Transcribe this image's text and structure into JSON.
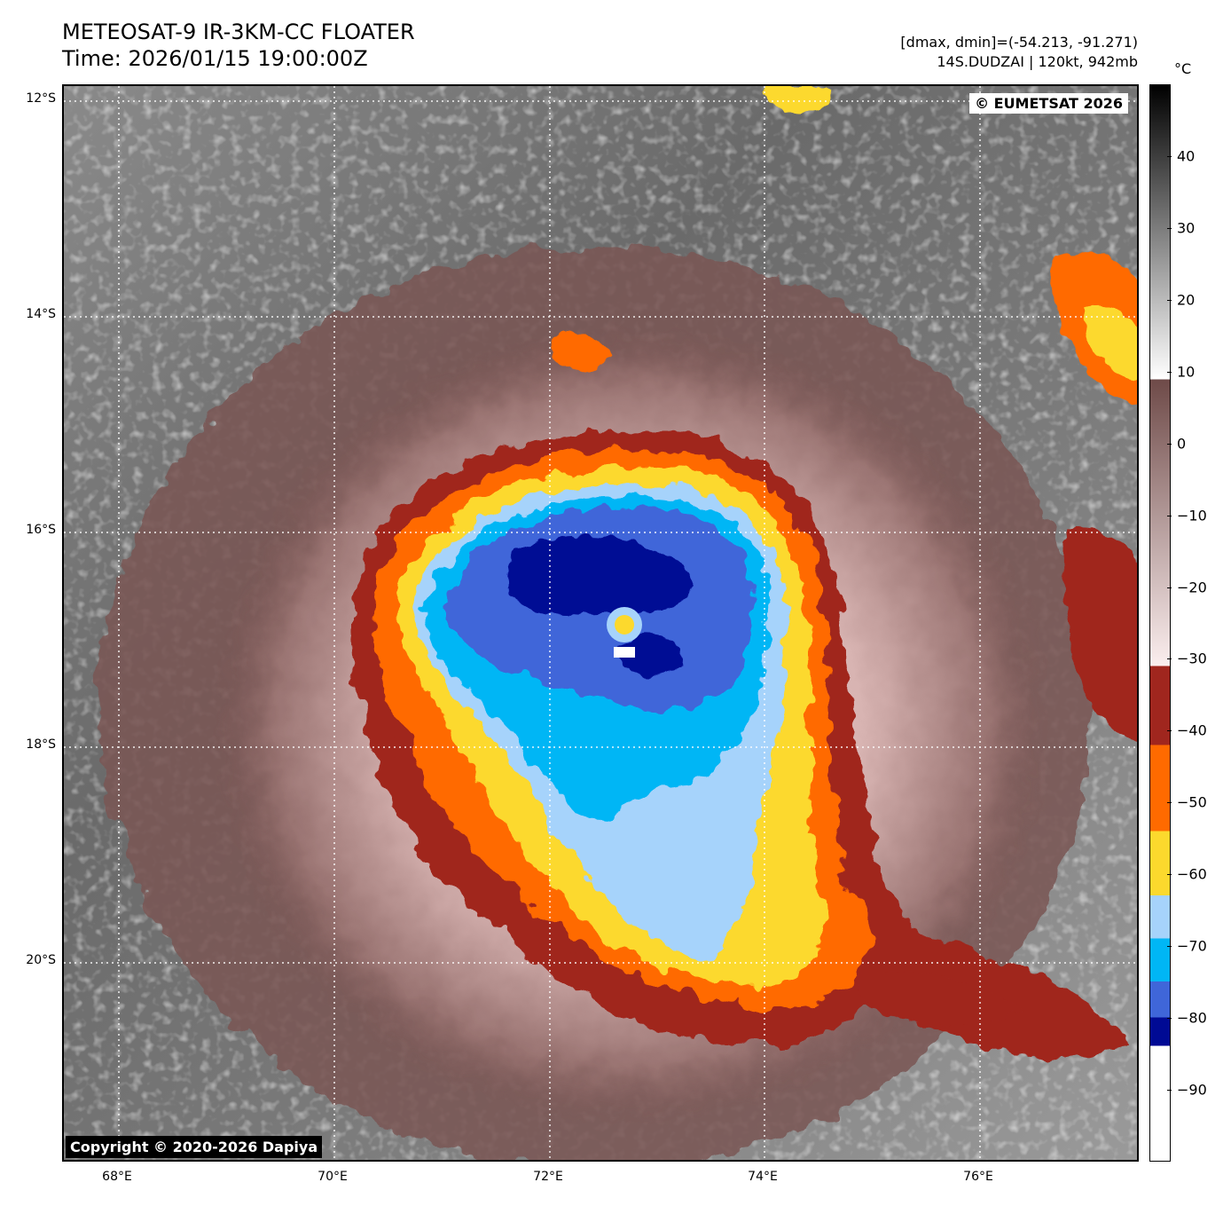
{
  "header": {
    "title_line1": "METEOSAT-9 IR-3KM-CC FLOATER",
    "title_line2": "Time: 2026/01/15 19:00:00Z",
    "meta_line1": "[dmax, dmin]=(-54.213, -91.271)",
    "meta_line2": "14S.DUDZAI | 120kt, 942mb"
  },
  "map": {
    "credit_top_right": "© EUMETSAT 2026",
    "credit_bottom_left": "Copyright © 2020-2026 Dapiya",
    "lat_ticks": [
      "12°S",
      "14°S",
      "16°S",
      "18°S",
      "20°S"
    ],
    "lon_ticks": [
      "68°E",
      "70°E",
      "72°E",
      "74°E",
      "76°E"
    ],
    "lon_range": [
      67.5,
      77.5
    ],
    "lat_range": [
      -11.9,
      -21.9
    ],
    "storm_center": {
      "lon": 72.7,
      "lat": -16.85
    }
  },
  "colorbar": {
    "unit": "°C",
    "ticks": [
      "40",
      "30",
      "20",
      "10",
      "0",
      "−10",
      "−20",
      "−30",
      "−40",
      "−50",
      "−60",
      "−70",
      "−80",
      "−90"
    ],
    "tick_values": [
      40,
      30,
      20,
      10,
      0,
      -10,
      -20,
      -30,
      -40,
      -50,
      -60,
      -70,
      -80,
      -90
    ],
    "range": [
      50,
      -100
    ],
    "bands": [
      {
        "from": 50,
        "to": 9,
        "gradient": [
          "#000000",
          "#ffffff"
        ]
      },
      {
        "from": 9,
        "to": -31,
        "gradient": [
          "#6e4a48",
          "#fbeeee"
        ]
      },
      {
        "from": -31,
        "to": -42,
        "color": "#a0261e"
      },
      {
        "from": -42,
        "to": -54,
        "color": "#ff6a00"
      },
      {
        "from": -54,
        "to": -63,
        "color": "#fcd92d"
      },
      {
        "from": -63,
        "to": -69,
        "color": "#a6d3fb"
      },
      {
        "from": -69,
        "to": -75,
        "color": "#00b6f5"
      },
      {
        "from": -75,
        "to": -80,
        "color": "#3f66d9"
      },
      {
        "from": -80,
        "to": -84,
        "color": "#000a94"
      },
      {
        "from": -84,
        "to": -100,
        "color": "#ffffff"
      }
    ]
  }
}
